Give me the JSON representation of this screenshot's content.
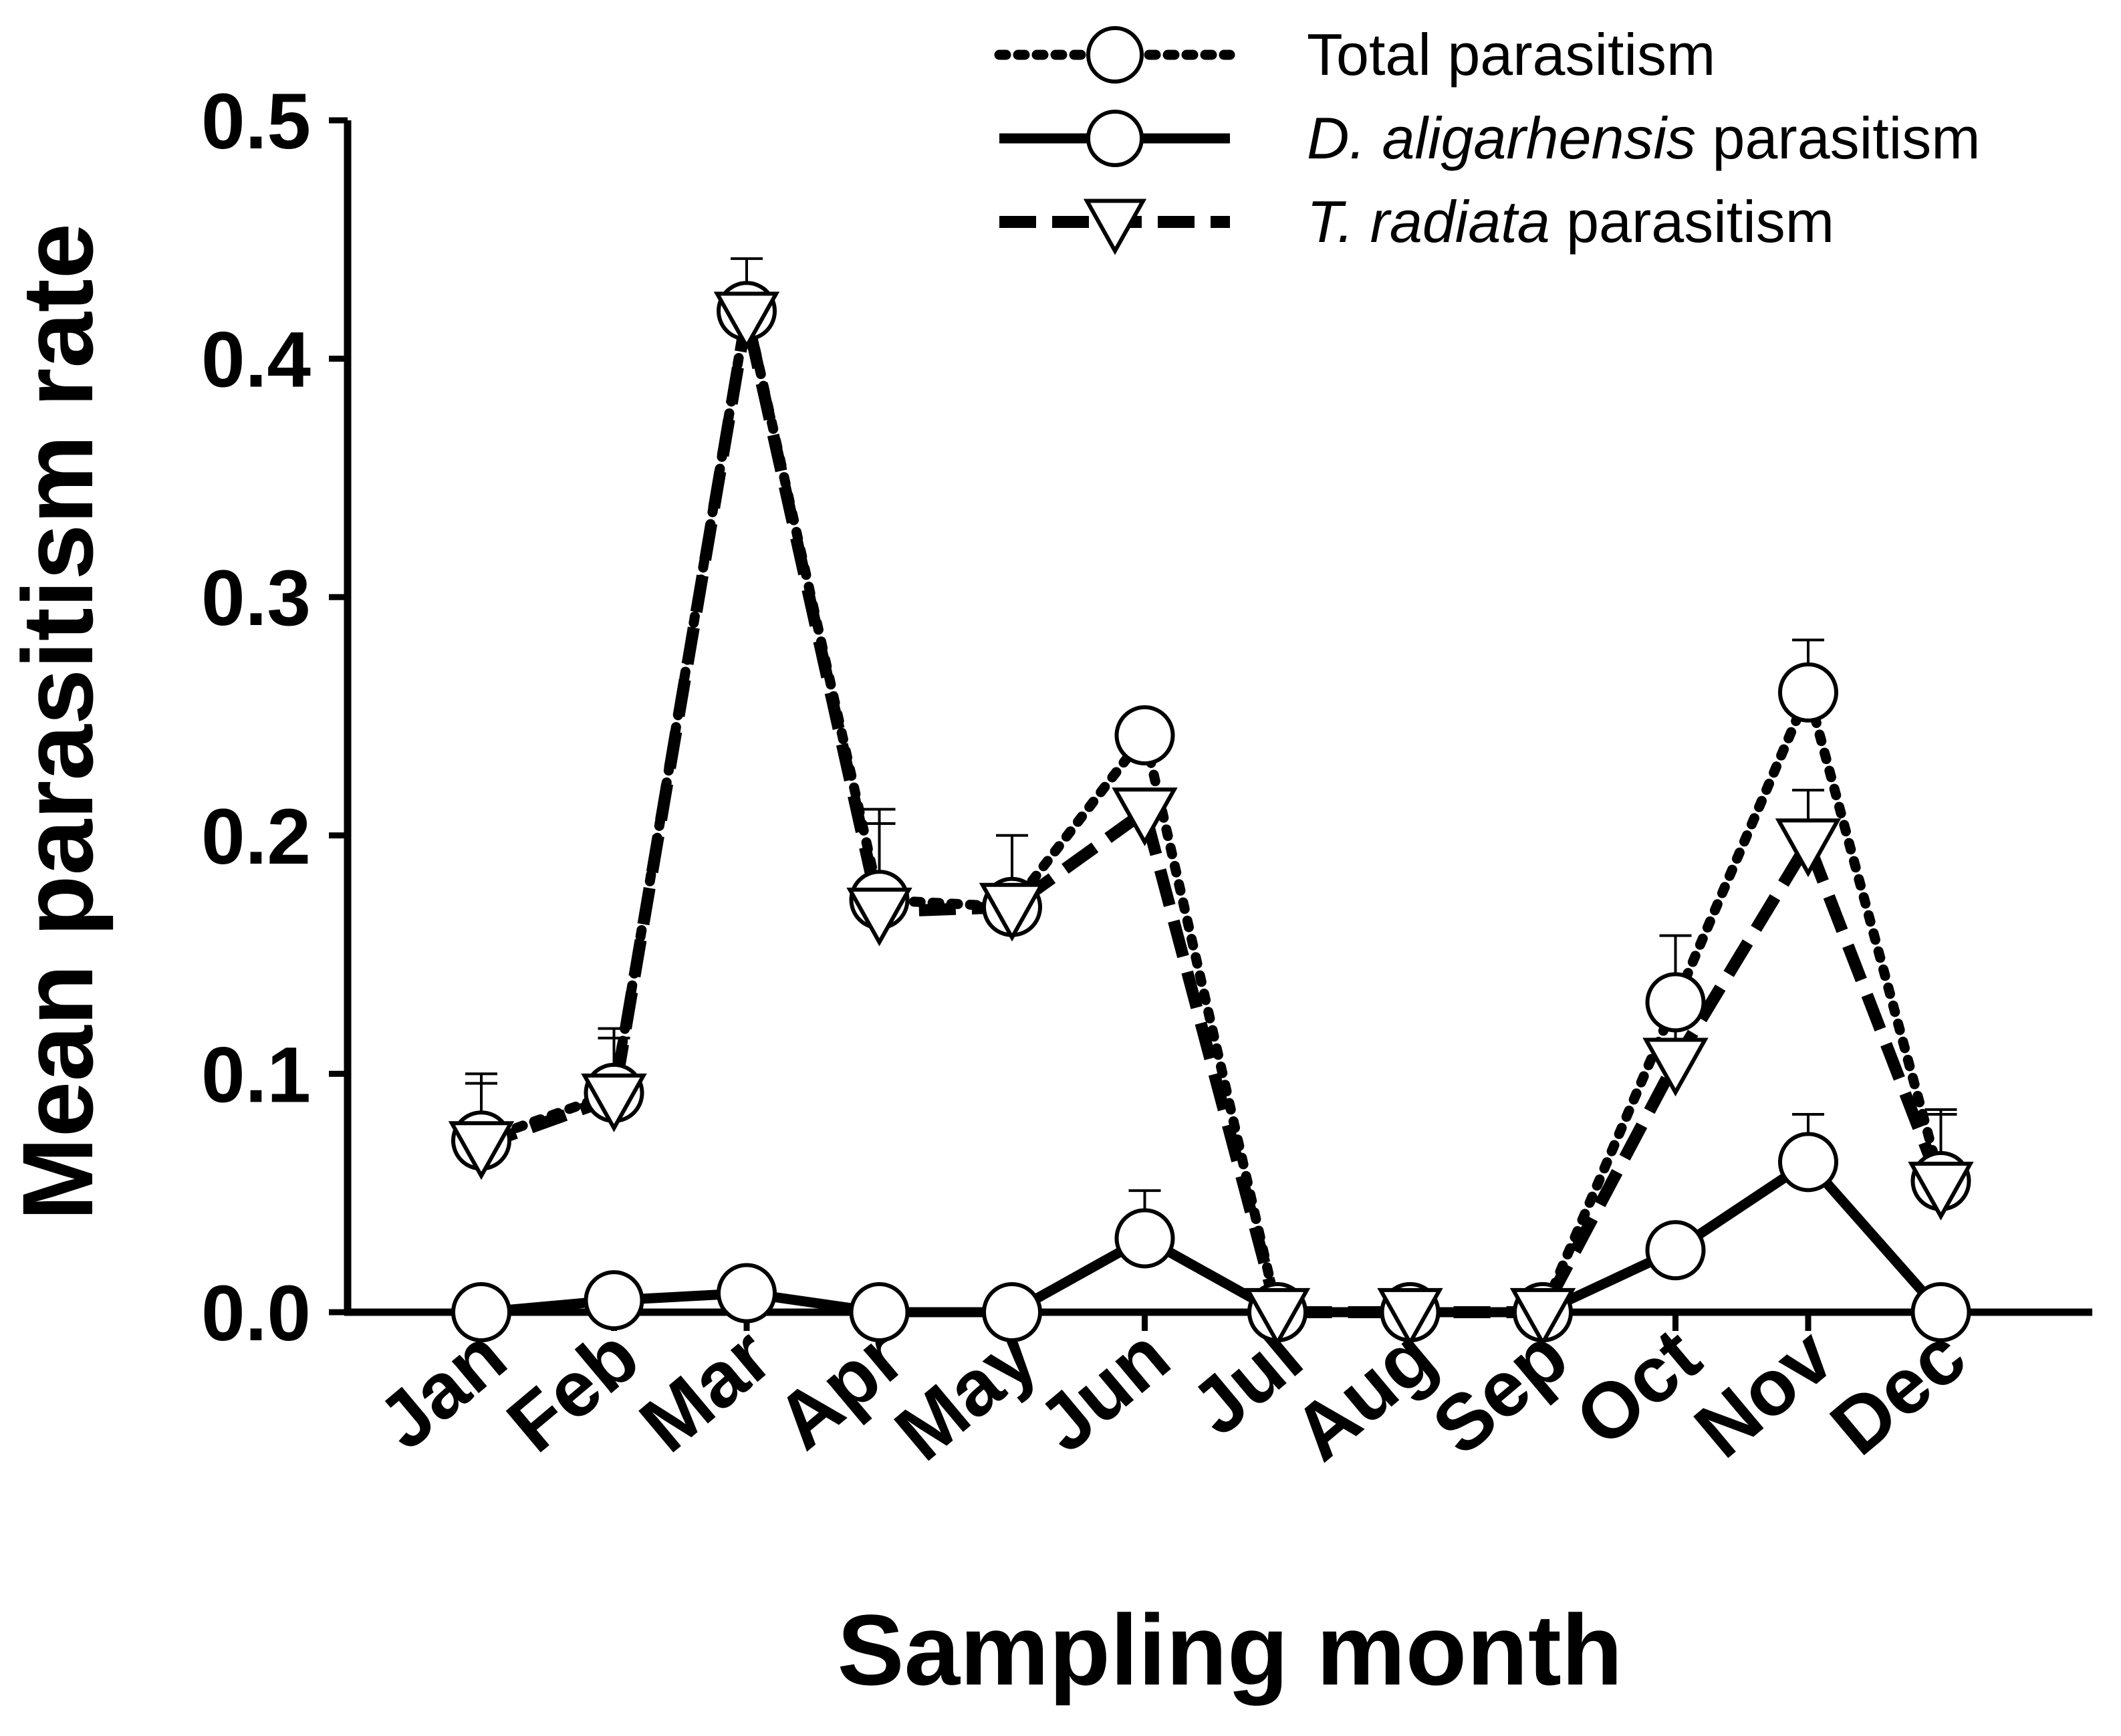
{
  "chart_data": {
    "type": "line",
    "title": "",
    "xlabel": "Sampling month",
    "ylabel": "Mean parasitism rate",
    "categories": [
      "Jan",
      "Feb",
      "Mar",
      "Apr",
      "May",
      "Jun",
      "Jul",
      "Aug",
      "Sep",
      "Oct",
      "Nov",
      "Dec"
    ],
    "ylim": [
      0,
      0.5
    ],
    "yticks": [
      "0.0",
      "0.1",
      "0.2",
      "0.3",
      "0.4",
      "0.5"
    ],
    "ytick_values": [
      0,
      0.1,
      0.2,
      0.3,
      0.4,
      0.5
    ],
    "grid": false,
    "legend_position": "top-right",
    "series": [
      {
        "name": "Total parasitism",
        "legend": {
          "italic": "",
          "rest": "Total parasitism"
        },
        "line_style": "dotted",
        "marker": "circle",
        "values": [
          0.072,
          0.092,
          0.42,
          0.173,
          0.17,
          0.242,
          0.0,
          0.0,
          0.0,
          0.13,
          0.26,
          0.055
        ],
        "errors": [
          0.028,
          0.027,
          0.022,
          0.038,
          0.03,
          0.0,
          0.0,
          0.0,
          0.0,
          0.028,
          0.022,
          0.03
        ]
      },
      {
        "name": "D. aligarhensis parasitism",
        "legend": {
          "italic": "D. aligarhensis",
          "rest": " parasitism"
        },
        "line_style": "solid",
        "marker": "circle",
        "values": [
          0.0,
          0.005,
          0.008,
          0.0,
          0.0,
          0.031,
          0.0,
          0.0,
          0.0,
          0.026,
          0.063,
          0.0
        ],
        "errors": [
          0.0,
          0.0,
          0.0,
          0.0,
          0.0,
          0.02,
          0.0,
          0.0,
          0.0,
          0.0,
          0.02,
          0.0
        ]
      },
      {
        "name": "T. radiata parasitism",
        "legend": {
          "italic": "T. radiata",
          "rest": " parasitism"
        },
        "line_style": "dashed",
        "marker": "triangle-down",
        "values": [
          0.07,
          0.09,
          0.418,
          0.168,
          0.17,
          0.21,
          0.0,
          0.0,
          0.0,
          0.105,
          0.197,
          0.053
        ],
        "errors": [
          0.026,
          0.025,
          0.0,
          0.037,
          0.0,
          0.0,
          0.0,
          0.0,
          0.0,
          0.025,
          0.022,
          0.03
        ]
      }
    ]
  }
}
